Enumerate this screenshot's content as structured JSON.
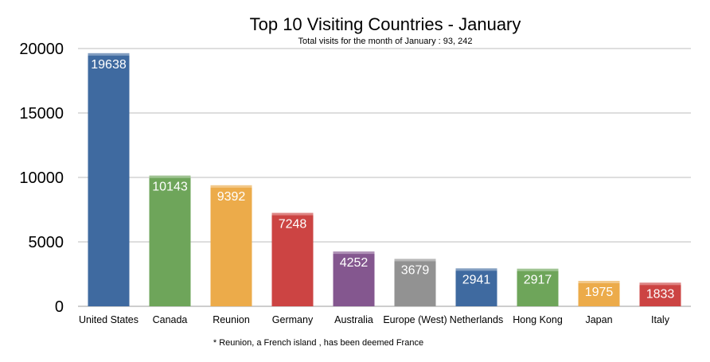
{
  "chart_data": {
    "type": "bar",
    "title": "Top 10 Visiting Countries - January",
    "subtitle": "Total visits for the month of January : 93, 242",
    "footnote": "* Reunion, a French island , has been deemed France",
    "xlabel": "",
    "ylabel": "",
    "ylim": [
      0,
      20000
    ],
    "yticks": [
      0,
      5000,
      10000,
      15000,
      20000
    ],
    "grid": true,
    "legend": "none",
    "categories": [
      "United States",
      "Canada",
      "Reunion",
      "Germany",
      "Australia",
      "Europe (West)",
      "Netherlands",
      "Hong Kong",
      "Japan",
      "Italy"
    ],
    "values": [
      19638,
      10143,
      9392,
      7248,
      4252,
      3679,
      2941,
      2917,
      1975,
      1833
    ],
    "colors": [
      "#3f6aa0",
      "#6ea55a",
      "#ecab4a",
      "#cc4443",
      "#84578f",
      "#929292",
      "#3f6aa0",
      "#6ea55a",
      "#ecab4a",
      "#cc4443"
    ]
  }
}
